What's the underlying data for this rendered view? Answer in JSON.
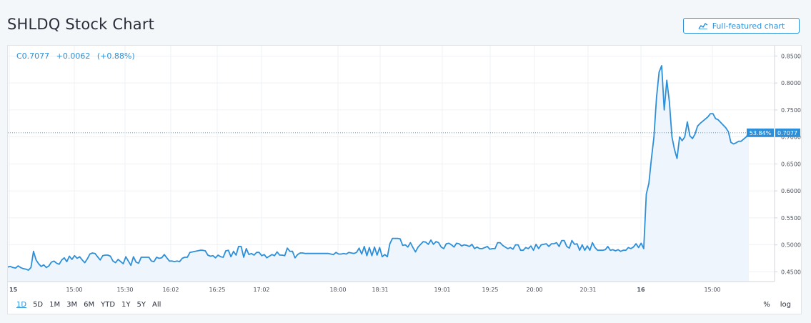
{
  "header": {
    "title": "SHLDQ Stock Chart",
    "full_chart_label": "Full-featured chart"
  },
  "legend": {
    "close": "C0.7077",
    "change": "+0.0062",
    "change_pct": "(+0.88%)"
  },
  "ranges": [
    "1D",
    "5D",
    "1M",
    "3M",
    "6M",
    "YTD",
    "1Y",
    "5Y",
    "All"
  ],
  "active_range": "1D",
  "scale_options": {
    "percent": "%",
    "log": "log"
  },
  "colors": {
    "line": "#2e8fd9",
    "fill": "#eef5fc",
    "badge": "#2e8fd9",
    "grid": "#eef1f4"
  },
  "chart_data": {
    "type": "area",
    "symbol": "SHLDQ",
    "ylim": [
      0.432,
      0.869
    ],
    "y_ticks": [
      0.45,
      0.5,
      0.55,
      0.6,
      0.65,
      0.7,
      0.75,
      0.8,
      0.85
    ],
    "y_tick_labels": [
      "0.4500",
      "0.5000",
      "0.5500",
      "0.6000",
      "0.6500",
      "0.7000",
      "0.7500",
      "0.8000",
      "0.8500"
    ],
    "x_tick_labels": [
      "15",
      "15:00",
      "15:30",
      "16:02",
      "16:25",
      "17:02",
      "18:00",
      "18:31",
      "19:01",
      "19:25",
      "20:00",
      "20:31",
      "16",
      "15:00"
    ],
    "last_value_label": "0.7077",
    "last_pct_label": "53.84%",
    "last_value": 0.7077,
    "grid": true,
    "series": [
      {
        "values": [
          0.459,
          0.46,
          0.458,
          0.457,
          0.461,
          0.458,
          0.456,
          0.455,
          0.453,
          0.458,
          0.488,
          0.472,
          0.465,
          0.46,
          0.463,
          0.458,
          0.461,
          0.468,
          0.47,
          0.466,
          0.464,
          0.472,
          0.476,
          0.469,
          0.479,
          0.473,
          0.48,
          0.475,
          0.478,
          0.472,
          0.467,
          0.474,
          0.483,
          0.485,
          0.484,
          0.478,
          0.472,
          0.48,
          0.481,
          0.481,
          0.479,
          0.47,
          0.467,
          0.473,
          0.469,
          0.465,
          0.478,
          0.47,
          0.462,
          0.478,
          0.468,
          0.466,
          0.477,
          0.477,
          0.477,
          0.477,
          0.47,
          0.469,
          0.477,
          0.475,
          0.476,
          0.482,
          0.476,
          0.47,
          0.47,
          0.469,
          0.47,
          0.469,
          0.475,
          0.477,
          0.477,
          0.486,
          0.487,
          0.488,
          0.489,
          0.49,
          0.49,
          0.489,
          0.481,
          0.479,
          0.48,
          0.476,
          0.481,
          0.478,
          0.477,
          0.489,
          0.49,
          0.478,
          0.488,
          0.481,
          0.497,
          0.497,
          0.477,
          0.493,
          0.482,
          0.484,
          0.481,
          0.486,
          0.486,
          0.48,
          0.482,
          0.476,
          0.479,
          0.482,
          0.48,
          0.487,
          0.481,
          0.481,
          0.48,
          0.494,
          0.488,
          0.488,
          0.476,
          0.482,
          0.485,
          0.485,
          0.484,
          0.484,
          0.484,
          0.484,
          0.484,
          0.484,
          0.484,
          0.484,
          0.484,
          0.484,
          0.483,
          0.482,
          0.486,
          0.483,
          0.483,
          0.484,
          0.483,
          0.486,
          0.485,
          0.484,
          0.486,
          0.494,
          0.483,
          0.497,
          0.48,
          0.495,
          0.48,
          0.496,
          0.481,
          0.495,
          0.478,
          0.482,
          0.478,
          0.502,
          0.512,
          0.512,
          0.512,
          0.511,
          0.499,
          0.5,
          0.496,
          0.504,
          0.495,
          0.487,
          0.496,
          0.501,
          0.506,
          0.505,
          0.501,
          0.509,
          0.501,
          0.506,
          0.504,
          0.496,
          0.493,
          0.502,
          0.503,
          0.5,
          0.496,
          0.503,
          0.502,
          0.498,
          0.5,
          0.499,
          0.497,
          0.501,
          0.493,
          0.496,
          0.493,
          0.493,
          0.495,
          0.497,
          0.492,
          0.493,
          0.493,
          0.504,
          0.504,
          0.499,
          0.496,
          0.493,
          0.495,
          0.492,
          0.5,
          0.5,
          0.49,
          0.49,
          0.495,
          0.493,
          0.498,
          0.49,
          0.501,
          0.493,
          0.5,
          0.501,
          0.502,
          0.497,
          0.502,
          0.502,
          0.504,
          0.497,
          0.508,
          0.508,
          0.497,
          0.494,
          0.508,
          0.501,
          0.502,
          0.49,
          0.5,
          0.49,
          0.498,
          0.49,
          0.504,
          0.495,
          0.49,
          0.49,
          0.49,
          0.491,
          0.497,
          0.49,
          0.491,
          0.489,
          0.491,
          0.488,
          0.49,
          0.49,
          0.495,
          0.493,
          0.496,
          0.502,
          0.495,
          0.503,
          0.493,
          0.594,
          0.614,
          0.659,
          0.7,
          0.773,
          0.82,
          0.832,
          0.75,
          0.805,
          0.765,
          0.7,
          0.677,
          0.66,
          0.7,
          0.693,
          0.7,
          0.728,
          0.702,
          0.697,
          0.705,
          0.72,
          0.725,
          0.729,
          0.733,
          0.737,
          0.743,
          0.743,
          0.734,
          0.732,
          0.727,
          0.722,
          0.717,
          0.71,
          0.69,
          0.687,
          0.689,
          0.692,
          0.692,
          0.696,
          0.7,
          0.708
        ]
      }
    ]
  }
}
